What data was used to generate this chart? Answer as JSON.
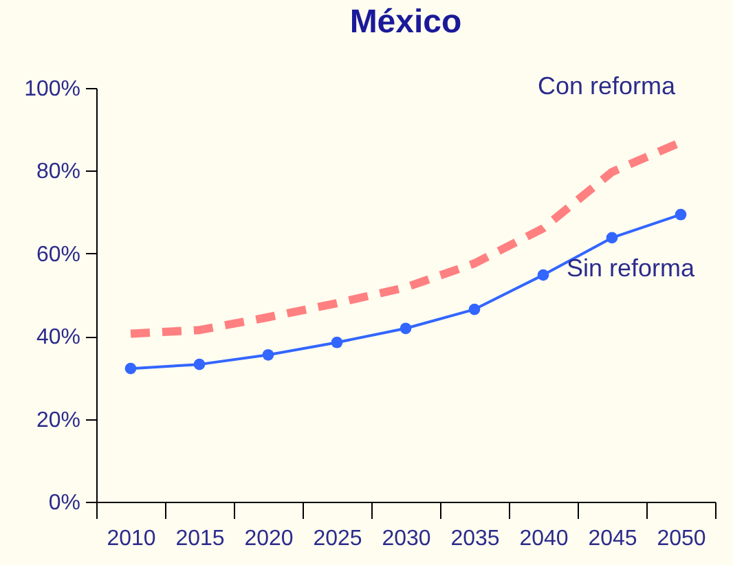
{
  "chart_data": {
    "type": "line",
    "title": "México",
    "categories": [
      "2010",
      "2015",
      "2020",
      "2025",
      "2030",
      "2035",
      "2040",
      "2045",
      "2050"
    ],
    "series": [
      {
        "name": "Con reforma",
        "color": "#ff8080",
        "line_style": "dashed",
        "marker": "none",
        "values": [
          40.6,
          41.5,
          44.6,
          48,
          51.8,
          57.6,
          66.1,
          79.7,
          86.9
        ]
      },
      {
        "name": "Sin reforma",
        "color": "#3366ff",
        "line_style": "solid",
        "marker": "circle",
        "values": [
          32.2,
          33.2,
          35.5,
          38.5,
          41.9,
          46.5,
          54.8,
          63.8,
          69.4
        ]
      }
    ],
    "ylim": [
      0,
      100
    ],
    "yticks": [
      {
        "value": 0,
        "label": "0%"
      },
      {
        "value": 20,
        "label": "20%"
      },
      {
        "value": 40,
        "label": "40%"
      },
      {
        "value": 60,
        "label": "60%"
      },
      {
        "value": 80,
        "label": "80%"
      },
      {
        "value": 100,
        "label": "100%"
      }
    ],
    "grid": false,
    "legend": false
  }
}
